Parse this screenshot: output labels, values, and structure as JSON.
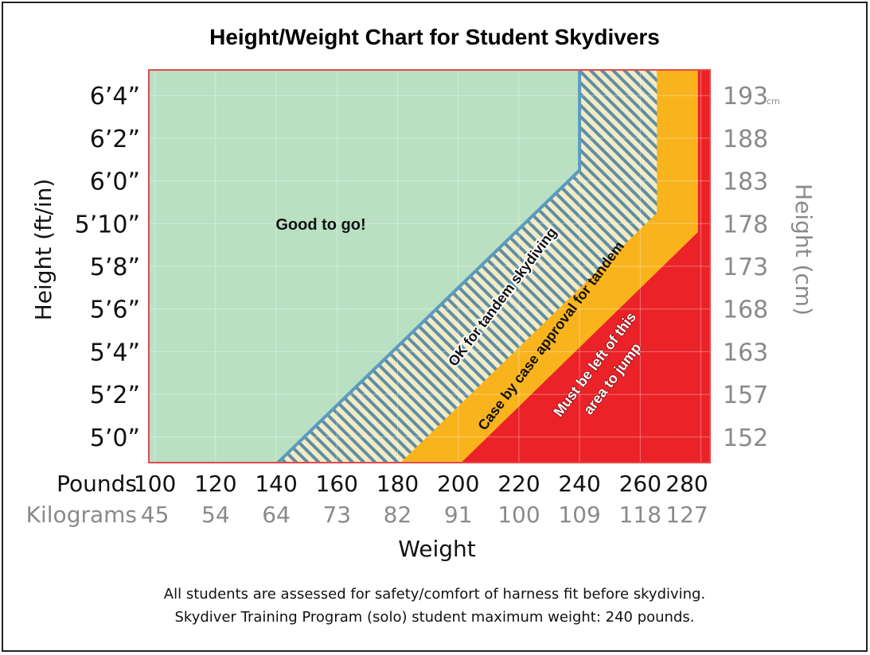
{
  "chart_data": {
    "type": "area",
    "title": "Height/Weight Chart for Student Skydivers",
    "xlabel": "Weight",
    "ylabel_left": "Height (ft/in)",
    "ylabel_right": "Height (cm)",
    "x_axis_primary_label": "Pounds",
    "x_axis_secondary_label": "Kilograms",
    "x_ticks_lb": [
      100,
      120,
      140,
      160,
      180,
      200,
      220,
      240,
      260,
      280
    ],
    "x_ticks_kg": [
      "45",
      "54",
      "64",
      "73",
      "82",
      "91",
      "100",
      "109",
      "118",
      "127"
    ],
    "y_ticks_in": [
      60,
      62,
      64,
      66,
      68,
      70,
      72,
      74,
      76
    ],
    "y_ticks_ftin": [
      "5’0”",
      "5’2”",
      "5’4”",
      "5’6”",
      "5’8”",
      "5’10”",
      "6’0”",
      "6’2”",
      "6’4”"
    ],
    "y_ticks_cm": [
      "152",
      "157",
      "163",
      "168",
      "173",
      "178",
      "183",
      "188",
      "193"
    ],
    "cm_unit": "cm",
    "xlim": [
      98,
      283
    ],
    "ylim": [
      58.8,
      77.2
    ],
    "grid": true,
    "zones": [
      {
        "name": "good",
        "label": "Good to go!",
        "color": "#b9e0c2",
        "boundary": [
          [
            140.5,
            58.8
          ],
          [
            240,
            72.5
          ],
          [
            240,
            77.2
          ]
        ]
      },
      {
        "name": "tandem",
        "label": "OK for tandem skydiving",
        "color": "#f3ebc4",
        "stripe": "#5f8ea6",
        "boundary": [
          [
            181,
            58.8
          ],
          [
            265.5,
            70.5
          ],
          [
            265.5,
            77.2
          ]
        ]
      },
      {
        "name": "case",
        "label": "Case by case approval for tandem",
        "color": "#f9b31d",
        "boundary": [
          [
            201,
            58.8
          ],
          [
            279,
            69.6
          ],
          [
            279,
            77.2
          ]
        ]
      },
      {
        "name": "must",
        "label_lines": [
          "Must be left of this",
          "area to jump"
        ],
        "color": "#eb2228"
      }
    ],
    "notes": [
      "All students are assessed for safety/comfort of harness fit before skydiving.",
      "Skydiver Training Program (solo) student maximum weight: 240 pounds."
    ]
  }
}
